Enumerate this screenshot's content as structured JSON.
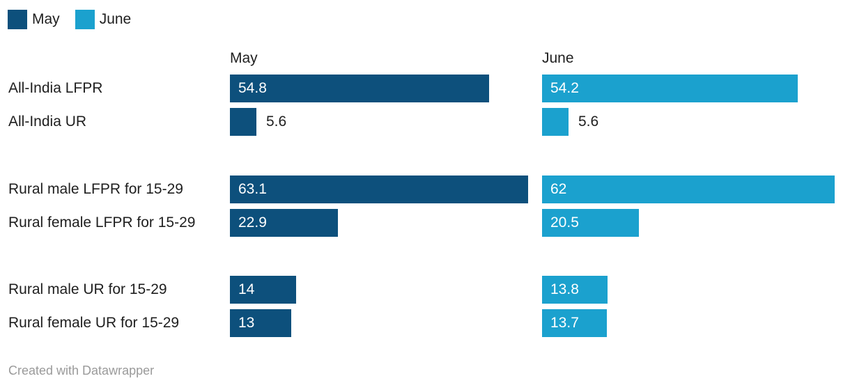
{
  "legend": {
    "items": [
      {
        "label": "May",
        "color": "#0d507c"
      },
      {
        "label": "June",
        "color": "#1ba1ce"
      }
    ]
  },
  "chart_data": {
    "type": "bar",
    "orientation": "horizontal",
    "title": "",
    "columns": [
      "May",
      "June"
    ],
    "categories": [
      "All-India LFPR",
      "All-India UR",
      "Rural male LFPR for 15-29",
      "Rural female LFPR for 15-29",
      "Rural male UR for 15-29",
      "Rural female UR for 15-29"
    ],
    "groups": [
      [
        0,
        1
      ],
      [
        2,
        3
      ],
      [
        4,
        5
      ]
    ],
    "series": [
      {
        "name": "May",
        "color": "#0d507c",
        "values": [
          54.8,
          5.6,
          63.1,
          22.9,
          14,
          13
        ],
        "display": [
          "54.8",
          "5.6",
          "63.1",
          "22.9",
          "14",
          "13"
        ]
      },
      {
        "name": "June",
        "color": "#1ba1ce",
        "values": [
          54.2,
          5.6,
          62,
          20.5,
          13.8,
          13.7
        ],
        "display": [
          "54.2",
          "5.6",
          "62",
          "20.5",
          "13.8",
          "13.7"
        ]
      }
    ],
    "xlim": [
      0,
      63.1
    ],
    "grid": false,
    "legend_position": "top-left",
    "value_labels": "inside-start"
  },
  "footer": {
    "credit": "Created with Datawrapper"
  }
}
